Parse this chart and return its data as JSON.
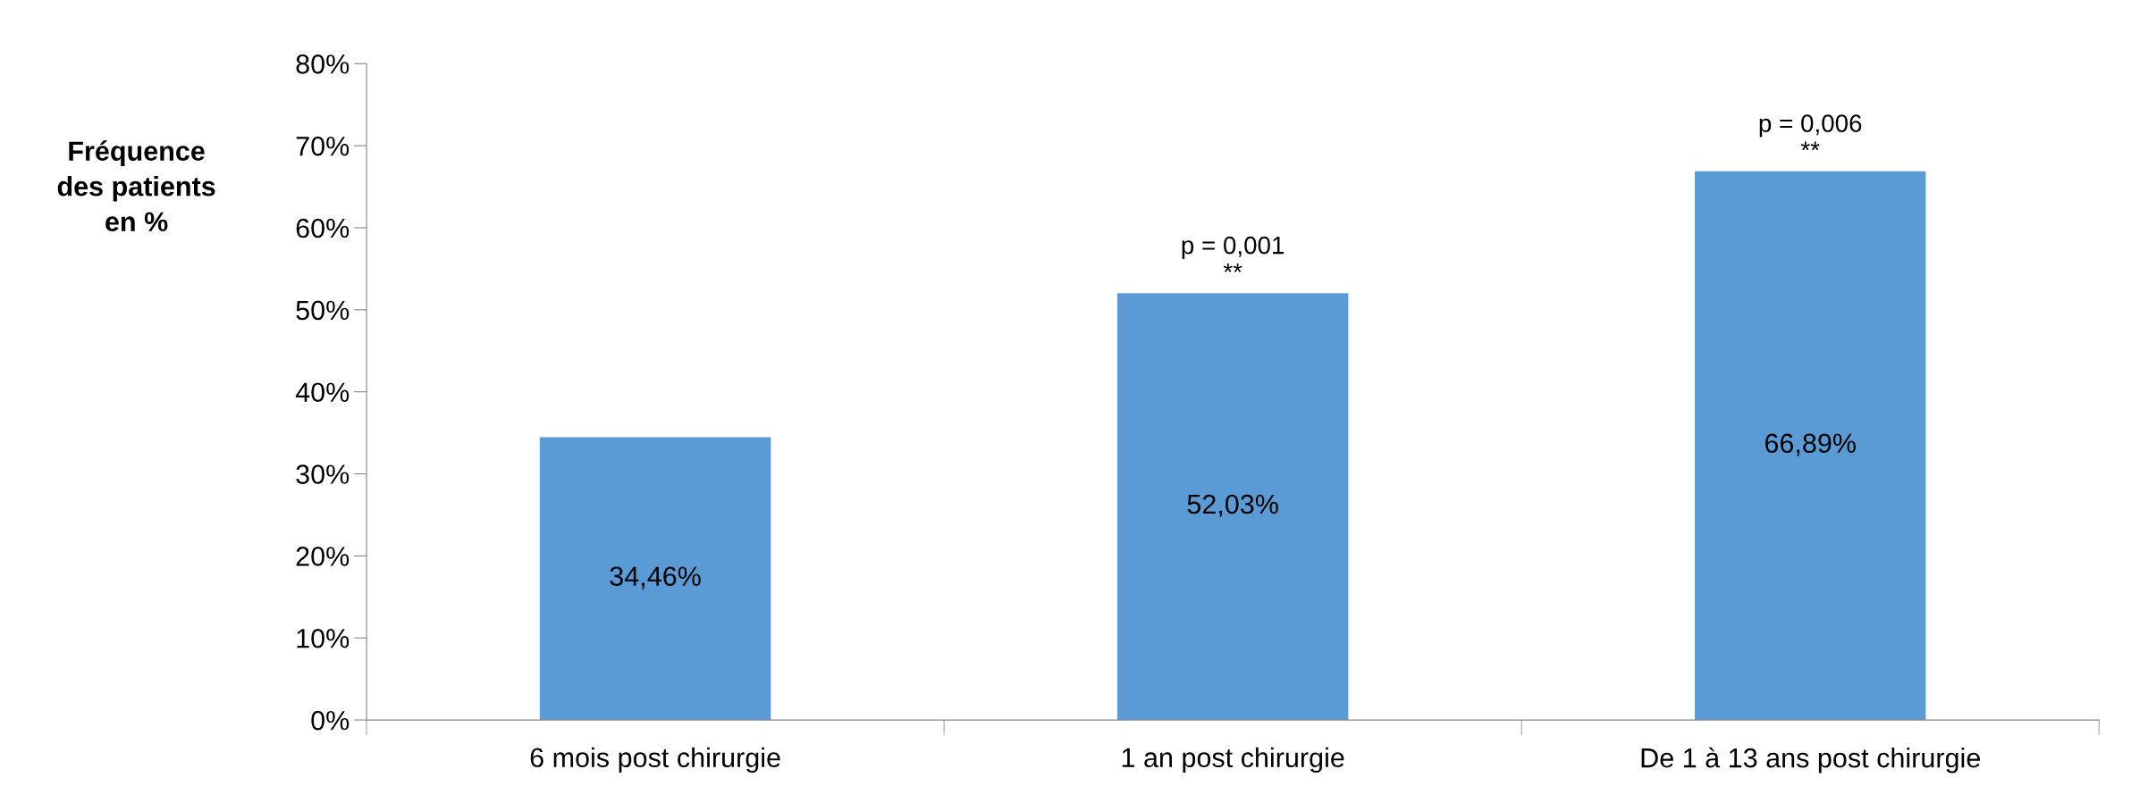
{
  "chart_data": {
    "type": "bar",
    "ylabel": "Fréquence\ndes patients\nen %",
    "categories": [
      "6 mois post chirurgie",
      "1 an post chirurgie",
      "De 1 à 13 ans post chirurgie"
    ],
    "values": [
      34.46,
      52.03,
      66.89
    ],
    "value_labels": [
      "34,46%",
      "52,03%",
      "66,89%"
    ],
    "color": "#5b9bd5",
    "ylim": [
      0,
      80
    ],
    "yticks": [
      {
        "value": 0,
        "label": "0%"
      },
      {
        "value": 10,
        "label": "10%"
      },
      {
        "value": 20,
        "label": "20%"
      },
      {
        "value": 30,
        "label": "30%"
      },
      {
        "value": 40,
        "label": "40%"
      },
      {
        "value": 50,
        "label": "50%"
      },
      {
        "value": 60,
        "label": "60%"
      },
      {
        "value": 70,
        "label": "70%"
      },
      {
        "value": 80,
        "label": "80%"
      }
    ],
    "annotations": [
      {
        "text": "p = 0,001\n**",
        "x": "1 an post chirurgie",
        "y": 52.03
      },
      {
        "text": "p = 0,006\n**",
        "x": "De 1 à 13 ans post chirurgie",
        "y": 66.89
      }
    ],
    "grid": false,
    "legend": false
  }
}
